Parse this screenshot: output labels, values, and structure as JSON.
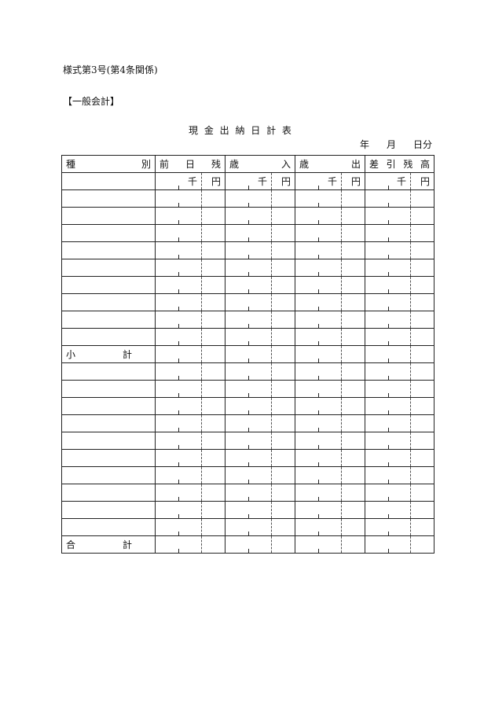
{
  "form_number": "様式第3号(第4条関係)",
  "section": "【一般会計】",
  "title": "現 金 出 納 日 計 表",
  "date_line": {
    "year": "年",
    "month": "月",
    "day": "日分"
  },
  "headers": [
    {
      "chars": [
        "種",
        "別"
      ]
    },
    {
      "chars": [
        "前",
        "日",
        "残"
      ]
    },
    {
      "chars": [
        "歳",
        "入"
      ]
    },
    {
      "chars": [
        "歳",
        "出"
      ]
    },
    {
      "chars": [
        "差",
        "引",
        "残",
        "高"
      ]
    }
  ],
  "units": {
    "thousand": "千",
    "yen": "円"
  },
  "rows": [
    "",
    "",
    "",
    "",
    "",
    "",
    "",
    "",
    "",
    "小　　　　　計",
    "",
    "",
    "",
    "",
    "",
    "",
    "",
    "",
    "",
    "",
    "合　　　　　計"
  ]
}
